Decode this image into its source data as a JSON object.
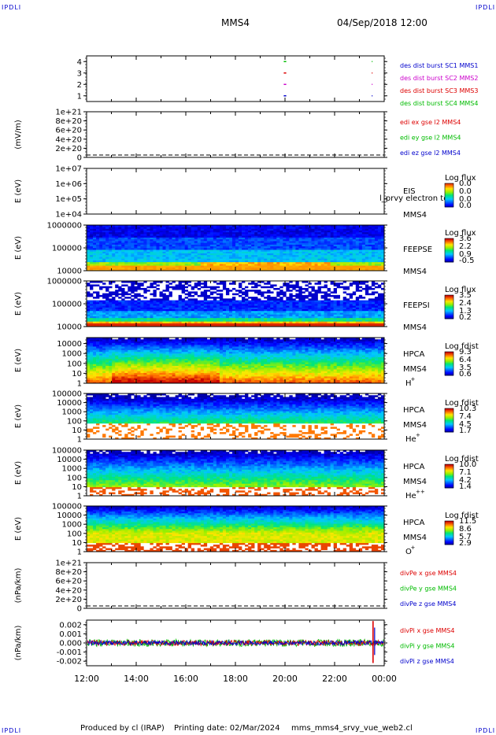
{
  "header": {
    "corner_mark": "IPDLI",
    "spacecraft": "MMS4",
    "datetime": "04/Sep/2018 12:00"
  },
  "footer": {
    "produced_by": "Produced by cl (IRAP)",
    "printing_date": "Printing date: 02/Mar/2024",
    "script_name": "mms_mms4_srvy_vue_web2.cl"
  },
  "time_axis": {
    "tick_labels": [
      "12:00",
      "14:00",
      "16:00",
      "18:00",
      "20:00",
      "22:00",
      "00:00"
    ],
    "start_hour": 12,
    "end_hour": 24
  },
  "colors": {
    "blue": "#0000cc",
    "green": "#00bb00",
    "red": "#dd0000",
    "magenta": "#cc00cc",
    "dashed_zero": "#000000"
  },
  "chart_data": [
    {
      "id": "dist_burst",
      "type": "scatter",
      "yticks": [
        "4",
        "3",
        "2",
        "1"
      ],
      "ylim": [
        0.5,
        4.5
      ],
      "legend": [
        {
          "label": "des dist burst SC1 MMS1",
          "color": "#0000cc"
        },
        {
          "label": "des dist burst SC2 MMS2",
          "color": "#cc00cc"
        },
        {
          "label": "des dist burst SC3 MMS3",
          "color": "#dd0000"
        },
        {
          "label": "des dist burst SC4 MMS4",
          "color": "#00bb00"
        }
      ],
      "segments": [
        {
          "sc": 4,
          "t0": 19.95,
          "t1": 20.05,
          "color": "#00bb00"
        },
        {
          "sc": 3,
          "t0": 19.95,
          "t1": 20.05,
          "color": "#dd0000"
        },
        {
          "sc": 2,
          "t0": 19.95,
          "t1": 20.05,
          "color": "#cc00cc"
        },
        {
          "sc": 1,
          "t0": 19.95,
          "t1": 20.05,
          "color": "#0000cc"
        },
        {
          "sc": 4,
          "t0": 23.5,
          "t1": 23.53,
          "color": "#00bb00"
        },
        {
          "sc": 3,
          "t0": 23.5,
          "t1": 23.53,
          "color": "#dd0000"
        },
        {
          "sc": 2,
          "t0": 23.5,
          "t1": 23.53,
          "color": "#cc00cc"
        },
        {
          "sc": 1,
          "t0": 23.5,
          "t1": 23.53,
          "color": "#0000cc"
        }
      ]
    },
    {
      "id": "edi_e",
      "type": "line",
      "ylabel": "(mV/m)",
      "yticks": [
        "1e+21",
        "8e+20",
        "6e+20",
        "4e+20",
        "2e+20",
        "0"
      ],
      "ylim": [
        0,
        1e+21
      ],
      "legend": [
        {
          "label": "edi ex gse l2 MMS4",
          "color": "#dd0000"
        },
        {
          "label": "edi ey gse l2 MMS4",
          "color": "#00bb00"
        },
        {
          "label": "edi ez gse l2 MMS4",
          "color": "#0000cc"
        }
      ]
    },
    {
      "id": "eis",
      "type": "heatmap",
      "ylabel": "E (eV)",
      "yticks": [
        "1e+07",
        "1e+06",
        "1e+05",
        "1e+04"
      ],
      "ylim": [
        10000,
        10000000
      ],
      "log": true,
      "name_lines": [
        "EIS",
        "MMS4"
      ],
      "overlay_text": "l_prvy electron to",
      "colorbar": {
        "title": "Log flux",
        "ticks": [
          "0.0",
          "0.0",
          "0.0",
          "0.0"
        ]
      },
      "profile": "eis"
    },
    {
      "id": "feeps_e",
      "type": "heatmap",
      "ylabel": "E (eV)",
      "yticks": [
        "1000000",
        "100000",
        "10000"
      ],
      "ylim": [
        10000,
        1000000
      ],
      "log": true,
      "name_lines": [
        "FEEPSE",
        "MMS4"
      ],
      "colorbar": {
        "title": "Log flux",
        "ticks": [
          "3.6",
          "2.2",
          "0.9",
          "-0.5"
        ]
      },
      "profile": "feepse"
    },
    {
      "id": "feeps_i",
      "type": "heatmap",
      "ylabel": "E (eV)",
      "yticks": [
        "1000000",
        "100000",
        "10000"
      ],
      "ylim": [
        10000,
        1000000
      ],
      "log": true,
      "name_lines": [
        "FEEPSI",
        "MMS4"
      ],
      "colorbar": {
        "title": "Log flux",
        "ticks": [
          "3.5",
          "2.4",
          "1.3",
          "0.2"
        ]
      },
      "profile": "feepsi"
    },
    {
      "id": "hpca_h",
      "type": "heatmap",
      "ylabel": "E (eV)",
      "yticks": [
        "10000",
        "1000",
        "100",
        "10",
        "1"
      ],
      "ylim": [
        1,
        40000
      ],
      "log": true,
      "name_lines": [
        "HPCA",
        "MMS4"
      ],
      "species": "H",
      "charge": "+",
      "colorbar": {
        "title": "Log fdist",
        "ticks": [
          "9.3",
          "6.4",
          "3.5",
          "0.6"
        ]
      },
      "profile": "h"
    },
    {
      "id": "hpca_he",
      "type": "heatmap",
      "ylabel": "E (eV)",
      "yticks": [
        "100000",
        "10000",
        "1000",
        "100",
        "10",
        "1"
      ],
      "ylim": [
        1,
        100000
      ],
      "log": true,
      "name_lines": [
        "HPCA",
        "MMS4"
      ],
      "species": "He",
      "charge": "+",
      "colorbar": {
        "title": "Log fdist",
        "ticks": [
          "10.3",
          "7.4",
          "4.5",
          "1.7"
        ]
      },
      "profile": "he"
    },
    {
      "id": "hpca_hepp",
      "type": "heatmap",
      "ylabel": "E (eV)",
      "yticks": [
        "100000",
        "10000",
        "1000",
        "100",
        "10",
        "1"
      ],
      "ylim": [
        1,
        100000
      ],
      "log": true,
      "name_lines": [
        "HPCA",
        "MMS4"
      ],
      "species": "He",
      "charge": "++",
      "colorbar": {
        "title": "Log fdist",
        "ticks": [
          "10.0",
          "7.1",
          "4.2",
          "1.4"
        ]
      },
      "profile": "hepp"
    },
    {
      "id": "hpca_o",
      "type": "heatmap",
      "ylabel": "E (eV)",
      "yticks": [
        "100000",
        "10000",
        "1000",
        "100",
        "10",
        "1"
      ],
      "ylim": [
        1,
        100000
      ],
      "log": true,
      "name_lines": [
        "HPCA",
        "MMS4"
      ],
      "species": "O",
      "charge": "+",
      "colorbar": {
        "title": "Log fdist",
        "ticks": [
          "11.5",
          "8.6",
          "5.7",
          "2.9"
        ]
      },
      "profile": "o"
    },
    {
      "id": "divpe",
      "type": "line",
      "ylabel": "(nPa/km)",
      "yticks": [
        "1e+21",
        "8e+20",
        "6e+20",
        "4e+20",
        "2e+20",
        "0"
      ],
      "ylim": [
        0,
        1e+21
      ],
      "legend": [
        {
          "label": "divPe x gse MMS4",
          "color": "#dd0000"
        },
        {
          "label": "divPe y gse MMS4",
          "color": "#00bb00"
        },
        {
          "label": "divPe z gse MMS4",
          "color": "#0000cc"
        }
      ]
    },
    {
      "id": "divpi",
      "type": "line",
      "ylabel": "(nPa/km)",
      "yticks": [
        "0.002",
        "0.001",
        "0.000",
        "-0.001",
        "-0.002"
      ],
      "ylim": [
        -0.0025,
        0.0025
      ],
      "legend": [
        {
          "label": "divPi x gse MMS4",
          "color": "#dd0000"
        },
        {
          "label": "divPi y gse MMS4",
          "color": "#00bb00"
        },
        {
          "label": "divPi z gse MMS4",
          "color": "#0000cc"
        }
      ],
      "series_amplitude": {
        "x": 0.0003,
        "y": 0.0004,
        "z": 0.00025
      },
      "spike": {
        "t": 23.55,
        "max": 0.0024,
        "min": -0.0022
      }
    }
  ]
}
